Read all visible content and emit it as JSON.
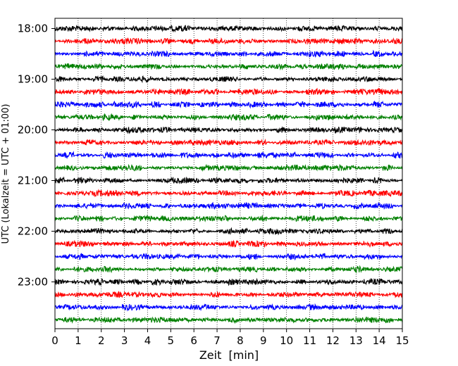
{
  "chart_data": {
    "type": "line",
    "title": "",
    "xlabel": "Zeit  [min]",
    "ylabel": "UTC (Lokalzeit = UTC + 01:00)",
    "xlim": [
      0,
      15
    ],
    "xticks": [
      0,
      1,
      2,
      3,
      4,
      5,
      6,
      7,
      8,
      9,
      10,
      11,
      12,
      13,
      14,
      15
    ],
    "ytick_labels": [
      "18:00",
      "19:00",
      "20:00",
      "21:00",
      "22:00",
      "23:00"
    ],
    "grid": "vertical-dotted",
    "trace_interval_min": 15,
    "trace_colors": [
      "#000000",
      "#ff0000",
      "#0000ff",
      "#008000"
    ],
    "traces": [
      {
        "start": "18:00",
        "color": "#000000"
      },
      {
        "start": "18:15",
        "color": "#ff0000"
      },
      {
        "start": "18:30",
        "color": "#0000ff"
      },
      {
        "start": "18:45",
        "color": "#008000"
      },
      {
        "start": "19:00",
        "color": "#000000"
      },
      {
        "start": "19:15",
        "color": "#ff0000"
      },
      {
        "start": "19:30",
        "color": "#0000ff"
      },
      {
        "start": "19:45",
        "color": "#008000"
      },
      {
        "start": "20:00",
        "color": "#000000"
      },
      {
        "start": "20:15",
        "color": "#ff0000"
      },
      {
        "start": "20:30",
        "color": "#0000ff"
      },
      {
        "start": "20:45",
        "color": "#008000"
      },
      {
        "start": "21:00",
        "color": "#000000"
      },
      {
        "start": "21:15",
        "color": "#ff0000"
      },
      {
        "start": "21:30",
        "color": "#0000ff"
      },
      {
        "start": "21:45",
        "color": "#008000"
      },
      {
        "start": "22:00",
        "color": "#000000"
      },
      {
        "start": "22:15",
        "color": "#ff0000"
      },
      {
        "start": "22:30",
        "color": "#0000ff"
      },
      {
        "start": "22:45",
        "color": "#008000"
      },
      {
        "start": "23:00",
        "color": "#000000"
      },
      {
        "start": "23:15",
        "color": "#ff0000"
      },
      {
        "start": "23:30",
        "color": "#0000ff"
      },
      {
        "start": "23:45",
        "color": "#008000"
      }
    ]
  }
}
